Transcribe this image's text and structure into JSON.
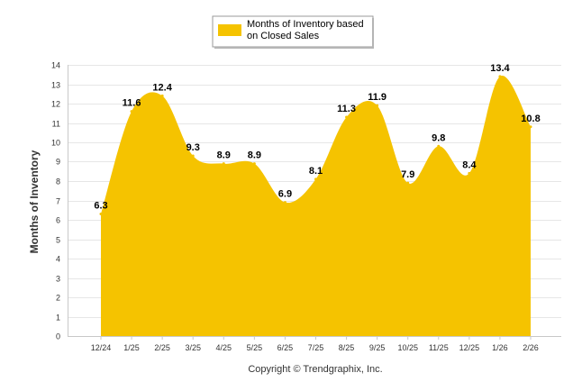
{
  "chart_data": {
    "type": "area",
    "title": "",
    "xlabel": "",
    "ylabel": "Months of Inventory",
    "ylim": [
      0,
      14
    ],
    "yticks": [
      "0",
      "1",
      "2",
      "3",
      "4",
      "5",
      "6",
      "7",
      "8",
      "9",
      "10",
      "11",
      "12",
      "13",
      "14"
    ],
    "grid": true,
    "legend_position": "top-center",
    "categories": [
      "12/24",
      "1/25",
      "2/25",
      "3/25",
      "4/25",
      "5/25",
      "6/25",
      "7/25",
      "8/25",
      "9/25",
      "10/25",
      "11/25",
      "12/25",
      "1/26",
      "2/26"
    ],
    "series": [
      {
        "name_line1": "Months of Inventory based",
        "name_line2": "on Closed Sales",
        "color": "#F5C300",
        "values": [
          6.3,
          11.6,
          12.4,
          9.3,
          8.9,
          8.9,
          6.9,
          8.1,
          11.3,
          11.9,
          7.9,
          9.8,
          8.4,
          13.4,
          10.8
        ],
        "labels": [
          "6.3",
          "11.6",
          "12.4",
          "9.3",
          "8.9",
          "8.9",
          "6.9",
          "8.1",
          "11.3",
          "11.9",
          "7.9",
          "9.8",
          "8.4",
          "13.4",
          "10.8"
        ]
      }
    ]
  },
  "footer": {
    "copyright": "Copyright © Trendgraphix, Inc."
  }
}
